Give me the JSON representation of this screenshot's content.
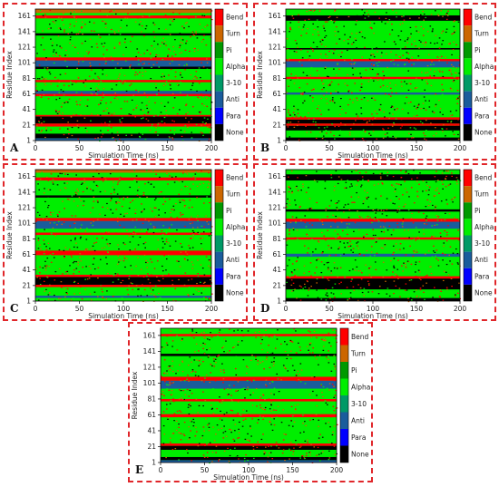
{
  "states": [
    {
      "name": "Bend",
      "color": "#ff0000"
    },
    {
      "name": "Turn",
      "color": "#cc6600"
    },
    {
      "name": "Pi",
      "color": "#009900"
    },
    {
      "name": "Alpha",
      "color": "#00ee00"
    },
    {
      "name": "3-10",
      "color": "#009966"
    },
    {
      "name": "Anti",
      "color": "#1a5c9c"
    },
    {
      "name": "Para",
      "color": "#0000ff"
    },
    {
      "name": "None",
      "color": "#000000"
    }
  ],
  "chart_data": [
    {
      "type": "heatmap",
      "panel": "A",
      "xlabel": "Simulation Time (ns)",
      "ylabel": "Residue Index",
      "xticks": [
        0,
        50,
        100,
        150,
        200
      ],
      "yticks": [
        1,
        21,
        41,
        61,
        81,
        101,
        121,
        141,
        161
      ],
      "xlim": [
        0,
        200
      ],
      "ylim": [
        1,
        170
      ],
      "legend": [
        "Bend",
        "Turn",
        "Pi",
        "Alpha",
        "3-10",
        "Anti",
        "Para",
        "None"
      ],
      "segments": [
        {
          "from": 1,
          "to": 4,
          "state": "Anti"
        },
        {
          "from": 4,
          "to": 10,
          "state": "None"
        },
        {
          "from": 10,
          "to": 19,
          "state": "Alpha"
        },
        {
          "from": 19,
          "to": 23,
          "state": "Bend"
        },
        {
          "from": 23,
          "to": 32,
          "state": "None"
        },
        {
          "from": 32,
          "to": 34,
          "state": "Bend"
        },
        {
          "from": 34,
          "to": 58,
          "state": "Alpha"
        },
        {
          "from": 58,
          "to": 61,
          "state": "Bend"
        },
        {
          "from": 61,
          "to": 65,
          "state": "Anti"
        },
        {
          "from": 65,
          "to": 76,
          "state": "Alpha"
        },
        {
          "from": 76,
          "to": 79,
          "state": "Bend"
        },
        {
          "from": 79,
          "to": 93,
          "state": "Alpha"
        },
        {
          "from": 93,
          "to": 96,
          "state": "None"
        },
        {
          "from": 96,
          "to": 104,
          "state": "Anti"
        },
        {
          "from": 104,
          "to": 108,
          "state": "Bend"
        },
        {
          "from": 108,
          "to": 136,
          "state": "Alpha"
        },
        {
          "from": 136,
          "to": 139,
          "state": "None"
        },
        {
          "from": 139,
          "to": 158,
          "state": "Alpha"
        },
        {
          "from": 158,
          "to": 162,
          "state": "Bend"
        },
        {
          "from": 162,
          "to": 165,
          "state": "Alpha"
        },
        {
          "from": 165,
          "to": 170,
          "state": "Turn"
        }
      ]
    },
    {
      "type": "heatmap",
      "panel": "B",
      "xlabel": "Simulation Time (ns)",
      "ylabel": "Residue Index",
      "xticks": [
        0,
        50,
        100,
        150,
        200
      ],
      "yticks": [
        1,
        21,
        41,
        61,
        81,
        101,
        121,
        141,
        161
      ],
      "xlim": [
        0,
        200
      ],
      "ylim": [
        1,
        170
      ],
      "legend": [
        "Bend",
        "Turn",
        "Pi",
        "Alpha",
        "3-10",
        "Anti",
        "Para",
        "None"
      ],
      "segments": [
        {
          "from": 1,
          "to": 5,
          "state": "None"
        },
        {
          "from": 5,
          "to": 14,
          "state": "Alpha"
        },
        {
          "from": 14,
          "to": 20,
          "state": "None"
        },
        {
          "from": 20,
          "to": 23,
          "state": "Bend"
        },
        {
          "from": 23,
          "to": 28,
          "state": "None"
        },
        {
          "from": 28,
          "to": 31,
          "state": "Bend"
        },
        {
          "from": 31,
          "to": 60,
          "state": "Alpha"
        },
        {
          "from": 60,
          "to": 63,
          "state": "Anti"
        },
        {
          "from": 63,
          "to": 80,
          "state": "Alpha"
        },
        {
          "from": 80,
          "to": 83,
          "state": "Bend"
        },
        {
          "from": 83,
          "to": 95,
          "state": "Alpha"
        },
        {
          "from": 95,
          "to": 103,
          "state": "Anti"
        },
        {
          "from": 103,
          "to": 106,
          "state": "Bend"
        },
        {
          "from": 106,
          "to": 118,
          "state": "Alpha"
        },
        {
          "from": 118,
          "to": 120,
          "state": "None"
        },
        {
          "from": 120,
          "to": 155,
          "state": "Alpha"
        },
        {
          "from": 155,
          "to": 162,
          "state": "None"
        },
        {
          "from": 162,
          "to": 170,
          "state": "Alpha"
        }
      ]
    },
    {
      "type": "heatmap",
      "panel": "C",
      "xlabel": "Simulation Time (ns)",
      "ylabel": "Residue Index",
      "xticks": [
        0,
        50,
        100,
        150,
        200
      ],
      "yticks": [
        1,
        21,
        41,
        61,
        81,
        101,
        121,
        141,
        161
      ],
      "xlim": [
        0,
        200
      ],
      "ylim": [
        1,
        170
      ],
      "legend": [
        "Bend",
        "Turn",
        "Pi",
        "Alpha",
        "3-10",
        "Anti",
        "Para",
        "None"
      ],
      "segments": [
        {
          "from": 1,
          "to": 5,
          "state": "Alpha"
        },
        {
          "from": 5,
          "to": 8,
          "state": "Anti"
        },
        {
          "from": 8,
          "to": 19,
          "state": "Alpha"
        },
        {
          "from": 19,
          "to": 22,
          "state": "Bend"
        },
        {
          "from": 22,
          "to": 32,
          "state": "None"
        },
        {
          "from": 32,
          "to": 35,
          "state": "Bend"
        },
        {
          "from": 35,
          "to": 60,
          "state": "Alpha"
        },
        {
          "from": 60,
          "to": 66,
          "state": "Bend"
        },
        {
          "from": 66,
          "to": 86,
          "state": "Alpha"
        },
        {
          "from": 86,
          "to": 89,
          "state": "Bend"
        },
        {
          "from": 89,
          "to": 94,
          "state": "Alpha"
        },
        {
          "from": 94,
          "to": 104,
          "state": "Anti"
        },
        {
          "from": 104,
          "to": 108,
          "state": "Bend"
        },
        {
          "from": 108,
          "to": 134,
          "state": "Alpha"
        },
        {
          "from": 134,
          "to": 137,
          "state": "None"
        },
        {
          "from": 137,
          "to": 156,
          "state": "Alpha"
        },
        {
          "from": 156,
          "to": 160,
          "state": "Bend"
        },
        {
          "from": 160,
          "to": 166,
          "state": "Alpha"
        },
        {
          "from": 166,
          "to": 170,
          "state": "Turn"
        }
      ]
    },
    {
      "type": "heatmap",
      "panel": "D",
      "xlabel": "Simulation Time (ns)",
      "ylabel": "Residue Index",
      "xticks": [
        0,
        50,
        100,
        150,
        200
      ],
      "yticks": [
        1,
        21,
        41,
        61,
        81,
        101,
        121,
        141,
        161
      ],
      "xlim": [
        0,
        200
      ],
      "ylim": [
        1,
        170
      ],
      "legend": [
        "Bend",
        "Turn",
        "Pi",
        "Alpha",
        "3-10",
        "Anti",
        "Para",
        "None"
      ],
      "segments": [
        {
          "from": 1,
          "to": 5,
          "state": "None"
        },
        {
          "from": 5,
          "to": 16,
          "state": "Alpha"
        },
        {
          "from": 16,
          "to": 30,
          "state": "None"
        },
        {
          "from": 30,
          "to": 33,
          "state": "Bend"
        },
        {
          "from": 33,
          "to": 58,
          "state": "Alpha"
        },
        {
          "from": 58,
          "to": 62,
          "state": "Anti"
        },
        {
          "from": 62,
          "to": 80,
          "state": "Alpha"
        },
        {
          "from": 80,
          "to": 83,
          "state": "Bend"
        },
        {
          "from": 83,
          "to": 94,
          "state": "Alpha"
        },
        {
          "from": 94,
          "to": 103,
          "state": "Anti"
        },
        {
          "from": 103,
          "to": 107,
          "state": "Bend"
        },
        {
          "from": 107,
          "to": 116,
          "state": "Alpha"
        },
        {
          "from": 116,
          "to": 119,
          "state": "None"
        },
        {
          "from": 119,
          "to": 156,
          "state": "Alpha"
        },
        {
          "from": 156,
          "to": 164,
          "state": "None"
        },
        {
          "from": 164,
          "to": 170,
          "state": "Alpha"
        }
      ]
    },
    {
      "type": "heatmap",
      "panel": "E",
      "xlabel": "Simulation Time (ns)",
      "ylabel": "Residue Index",
      "xticks": [
        0,
        50,
        100,
        150,
        200
      ],
      "yticks": [
        1,
        21,
        41,
        61,
        81,
        101,
        121,
        141,
        161
      ],
      "xlim": [
        0,
        200
      ],
      "ylim": [
        1,
        170
      ],
      "legend": [
        "Bend",
        "Turn",
        "Pi",
        "Alpha",
        "3-10",
        "Anti",
        "Para",
        "None"
      ],
      "segments": [
        {
          "from": 1,
          "to": 4,
          "state": "Anti"
        },
        {
          "from": 4,
          "to": 8,
          "state": "None"
        },
        {
          "from": 8,
          "to": 17,
          "state": "Alpha"
        },
        {
          "from": 17,
          "to": 22,
          "state": "None"
        },
        {
          "from": 22,
          "to": 25,
          "state": "Bend"
        },
        {
          "from": 25,
          "to": 58,
          "state": "Alpha"
        },
        {
          "from": 58,
          "to": 62,
          "state": "Bend"
        },
        {
          "from": 62,
          "to": 78,
          "state": "Alpha"
        },
        {
          "from": 78,
          "to": 81,
          "state": "Bend"
        },
        {
          "from": 81,
          "to": 94,
          "state": "Alpha"
        },
        {
          "from": 94,
          "to": 104,
          "state": "Anti"
        },
        {
          "from": 104,
          "to": 109,
          "state": "Bend"
        },
        {
          "from": 109,
          "to": 135,
          "state": "Alpha"
        },
        {
          "from": 135,
          "to": 138,
          "state": "None"
        },
        {
          "from": 138,
          "to": 160,
          "state": "Alpha"
        },
        {
          "from": 160,
          "to": 163,
          "state": "Bend"
        },
        {
          "from": 163,
          "to": 170,
          "state": "Alpha"
        }
      ]
    }
  ]
}
